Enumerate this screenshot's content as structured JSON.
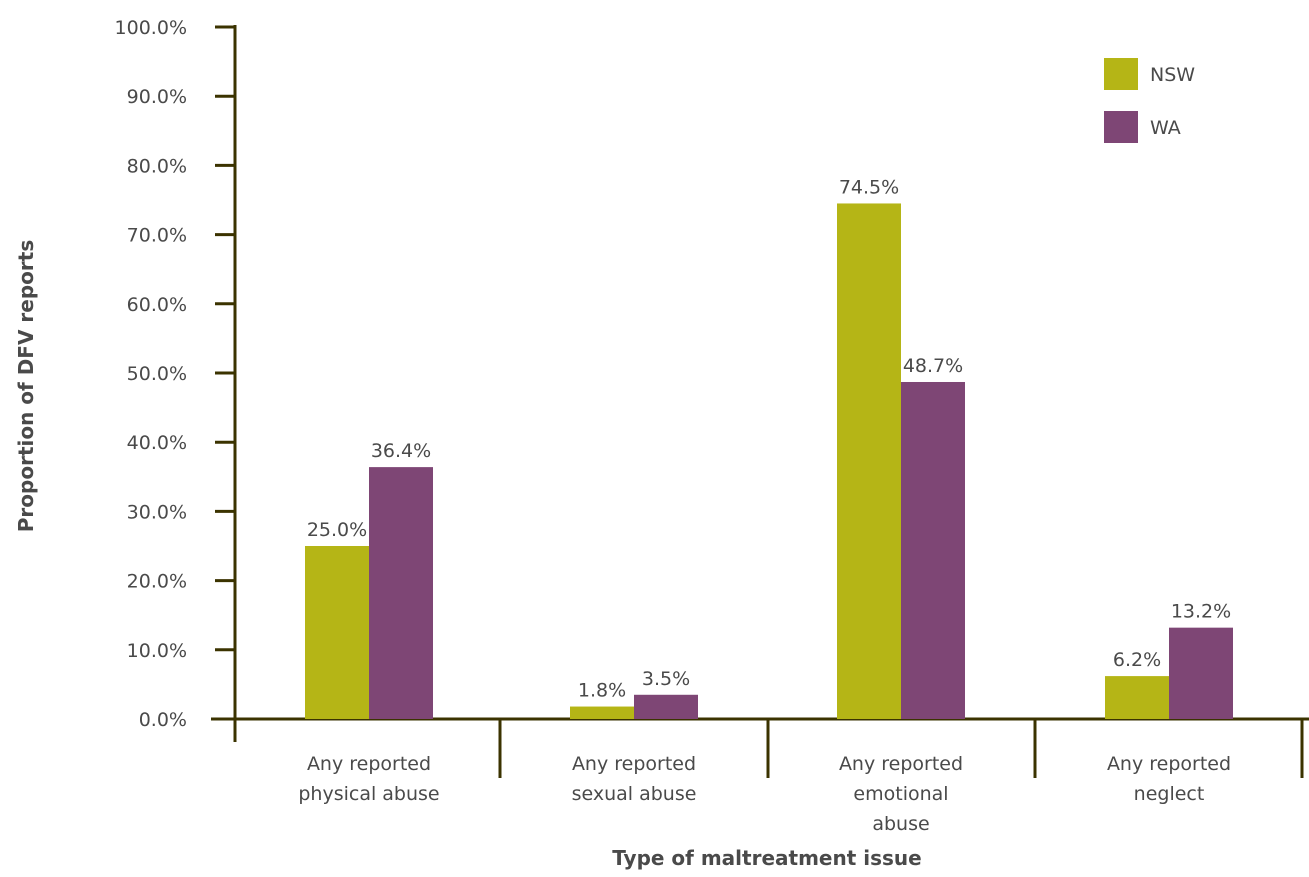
{
  "chart_data": {
    "type": "bar",
    "title": "",
    "xlabel": "Type of maltreatment issue",
    "ylabel": "Proportion of DFV reports",
    "ylim": [
      0,
      100
    ],
    "y_ticks": [
      "0.0%",
      "10.0%",
      "20.0%",
      "30.0%",
      "40.0%",
      "50.0%",
      "60.0%",
      "70.0%",
      "80.0%",
      "90.0%",
      "100.0%"
    ],
    "categories": [
      [
        "Any reported",
        "physical abuse"
      ],
      [
        "Any reported",
        "sexual abuse"
      ],
      [
        "Any reported",
        "emotional",
        "abuse"
      ],
      [
        "Any reported",
        "neglect"
      ]
    ],
    "series": [
      {
        "name": "NSW",
        "color": "#b5b516",
        "values": [
          25.0,
          1.8,
          74.5,
          6.2
        ],
        "labels": [
          "25.0%",
          "1.8%",
          "74.5%",
          "6.2%"
        ]
      },
      {
        "name": "WA",
        "color": "#7e4675",
        "values": [
          36.4,
          3.5,
          48.7,
          13.2
        ],
        "labels": [
          "36.4%",
          "3.5%",
          "48.7%",
          "13.2%"
        ]
      }
    ],
    "axis_color": "#3b3300",
    "grid": false,
    "legend_position": "top-right"
  }
}
